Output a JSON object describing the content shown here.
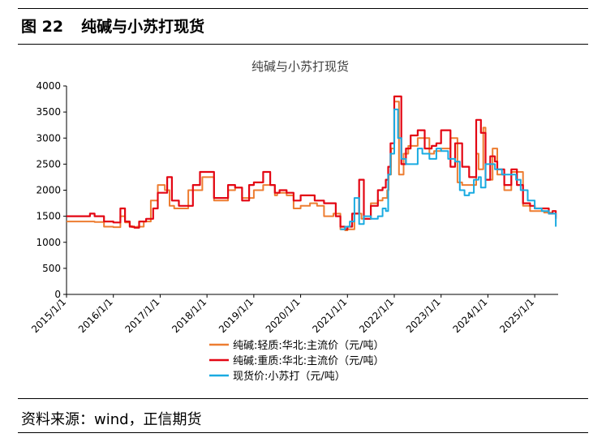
{
  "figure": {
    "label": "图 22",
    "title": "纯碱与小苏打现货"
  },
  "source": "资料来源：wind，正信期货",
  "chart_data": {
    "type": "line",
    "title": "纯碱与小苏打现货",
    "xlabel": "",
    "ylabel": "",
    "ylim": [
      0,
      4000
    ],
    "yticks": [
      "0",
      "500",
      "1000",
      "1500",
      "2000",
      "2500",
      "3000",
      "3500",
      "4000"
    ],
    "x_range": [
      2015.0,
      2025.5
    ],
    "xticks": [
      "2015/1/1",
      "2016/1/1",
      "2017/1/1",
      "2018/1/1",
      "2019/1/1",
      "2020/1/1",
      "2021/1/1",
      "2022/1/1",
      "2023/1/1",
      "2024/1/1",
      "2025/1/1"
    ],
    "grid": false,
    "legend_position": "bottom",
    "series": [
      {
        "name": "纯碱:轻质:华北:主流价（元/吨）",
        "color": "#ED7D31",
        "x": [
          2015.0,
          2015.3,
          2015.6,
          2015.8,
          2016.0,
          2016.15,
          2016.25,
          2016.35,
          2016.4,
          2016.5,
          2016.65,
          2016.8,
          2016.95,
          2017.1,
          2017.2,
          2017.3,
          2017.45,
          2017.6,
          2017.9,
          2018.0,
          2018.15,
          2018.3,
          2018.45,
          2018.6,
          2018.75,
          2019.0,
          2019.2,
          2019.35,
          2019.45,
          2019.5,
          2019.7,
          2019.85,
          2020.0,
          2020.2,
          2020.35,
          2020.5,
          2020.7,
          2020.85,
          2020.95,
          2021.0,
          2021.15,
          2021.3,
          2021.5,
          2021.65,
          2021.75,
          2021.85,
          2021.88,
          2021.93,
          2022.0,
          2022.1,
          2022.2,
          2022.3,
          2022.5,
          2022.75,
          2022.85,
          2023.0,
          2023.1,
          2023.2,
          2023.35,
          2023.45,
          2023.6,
          2023.75,
          2023.8,
          2023.9,
          2023.95,
          2024.1,
          2024.2,
          2024.35,
          2024.5,
          2024.6,
          2024.75,
          2024.9,
          2025.0,
          2025.2,
          2025.35,
          2025.45
        ],
        "values": [
          1400,
          1400,
          1390,
          1300,
          1290,
          1500,
          1380,
          1310,
          1290,
          1300,
          1400,
          1800,
          2100,
          2000,
          1700,
          1650,
          1650,
          2000,
          2250,
          2250,
          1800,
          1800,
          2000,
          2050,
          1850,
          2000,
          2100,
          2100,
          1900,
          1950,
          1900,
          1650,
          1700,
          1750,
          1700,
          1500,
          1550,
          1250,
          1230,
          1250,
          1550,
          1450,
          1750,
          1800,
          1850,
          2000,
          2300,
          2800,
          3700,
          2300,
          2700,
          2850,
          3000,
          2700,
          2750,
          2800,
          2800,
          3000,
          2150,
          2100,
          2100,
          2700,
          2400,
          3200,
          2200,
          2800,
          2300,
          2000,
          2350,
          2350,
          1700,
          1600,
          1600,
          1570,
          1550,
          1480
        ]
      },
      {
        "name": "纯碱:重质:华北:主流价（元/吨）",
        "color": "#E30613",
        "x": [
          2015.0,
          2015.1,
          2015.5,
          2015.6,
          2015.8,
          2016.0,
          2016.15,
          2016.25,
          2016.35,
          2016.45,
          2016.55,
          2016.7,
          2016.85,
          2016.95,
          2017.15,
          2017.25,
          2017.4,
          2017.55,
          2017.7,
          2017.85,
          2018.0,
          2018.15,
          2018.3,
          2018.45,
          2018.6,
          2018.75,
          2018.9,
          2019.0,
          2019.2,
          2019.35,
          2019.45,
          2019.55,
          2019.7,
          2019.85,
          2020.0,
          2020.15,
          2020.3,
          2020.5,
          2020.75,
          2020.85,
          2020.95,
          2021.0,
          2021.1,
          2021.25,
          2021.35,
          2021.5,
          2021.65,
          2021.75,
          2021.82,
          2021.87,
          2021.92,
          2022.0,
          2022.08,
          2022.15,
          2022.25,
          2022.35,
          2022.5,
          2022.65,
          2022.8,
          2022.9,
          2023.0,
          2023.1,
          2023.2,
          2023.3,
          2023.45,
          2023.6,
          2023.75,
          2023.85,
          2023.95,
          2024.05,
          2024.15,
          2024.2,
          2024.35,
          2024.5,
          2024.62,
          2024.75,
          2024.9,
          2025.0,
          2025.1,
          2025.2,
          2025.3,
          2025.38,
          2025.45
        ],
        "values": [
          1500,
          1500,
          1550,
          1500,
          1400,
          1380,
          1650,
          1400,
          1300,
          1280,
          1400,
          1450,
          1650,
          1950,
          2250,
          1800,
          1700,
          1700,
          2100,
          2350,
          2350,
          1850,
          1850,
          2100,
          2050,
          1800,
          2100,
          2150,
          2350,
          2100,
          1950,
          2000,
          1950,
          1800,
          1900,
          1900,
          1800,
          1750,
          1500,
          1300,
          1250,
          1300,
          1550,
          2200,
          1450,
          1700,
          2000,
          2050,
          2200,
          2450,
          2900,
          3800,
          3800,
          2500,
          2800,
          3050,
          3150,
          2800,
          2850,
          2900,
          3150,
          3150,
          2450,
          2900,
          2450,
          2250,
          3350,
          3100,
          2200,
          2650,
          2550,
          2400,
          2100,
          2400,
          2100,
          1750,
          1700,
          1650,
          1650,
          1650,
          1550,
          1600,
          1450
        ]
      },
      {
        "name": "现货价:小苏打（元/吨）",
        "color": "#1AABE1",
        "x": [
          2020.85,
          2020.95,
          2021.05,
          2021.15,
          2021.25,
          2021.35,
          2021.5,
          2021.65,
          2021.75,
          2021.82,
          2021.87,
          2021.92,
          2022.0,
          2022.08,
          2022.15,
          2022.25,
          2022.35,
          2022.5,
          2022.6,
          2022.75,
          2022.9,
          2023.0,
          2023.15,
          2023.3,
          2023.4,
          2023.5,
          2023.6,
          2023.7,
          2023.8,
          2023.85,
          2023.95,
          2024.05,
          2024.15,
          2024.3,
          2024.45,
          2024.6,
          2024.7,
          2024.85,
          2025.0,
          2025.15,
          2025.3,
          2025.4,
          2025.45
        ],
        "values": [
          1250,
          1300,
          1400,
          1850,
          1350,
          1500,
          1450,
          1500,
          1650,
          1600,
          2300,
          2700,
          3550,
          3000,
          2600,
          2500,
          2500,
          2800,
          2700,
          2600,
          2800,
          2750,
          2600,
          2550,
          2000,
          1900,
          1950,
          2200,
          2250,
          2050,
          2500,
          2500,
          2400,
          2300,
          2300,
          2200,
          2000,
          1800,
          1650,
          1600,
          1550,
          1550,
          1300
        ]
      }
    ]
  }
}
